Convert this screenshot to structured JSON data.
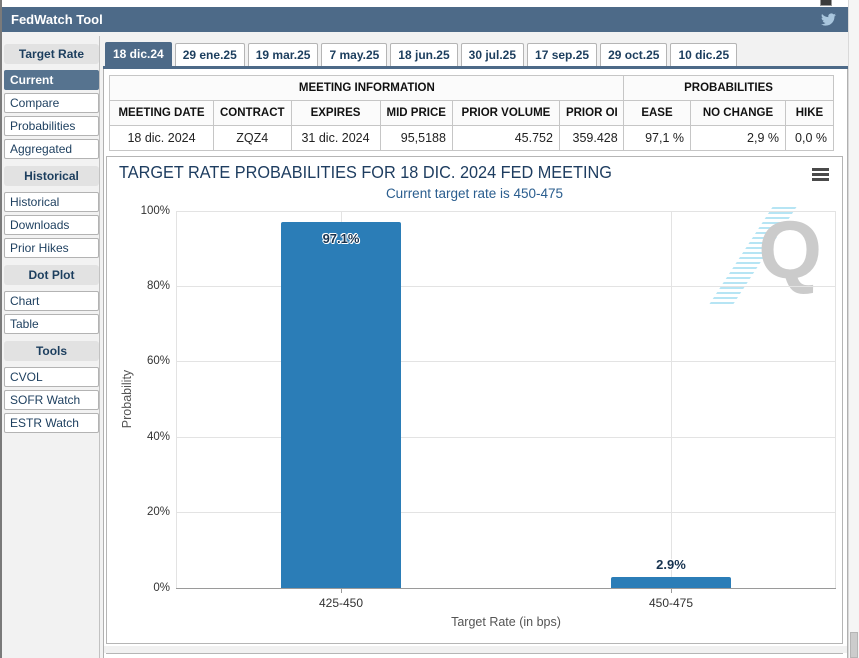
{
  "header": {
    "title": "FedWatch Tool"
  },
  "sidebar": {
    "sections": [
      {
        "header": "Target Rate",
        "items": [
          {
            "label": "Current",
            "active": true
          },
          {
            "label": "Compare"
          },
          {
            "label": "Probabilities"
          },
          {
            "label": "Aggregated"
          }
        ]
      },
      {
        "header": "Historical",
        "items": [
          {
            "label": "Historical"
          },
          {
            "label": "Downloads"
          },
          {
            "label": "Prior Hikes"
          }
        ]
      },
      {
        "header": "Dot Plot",
        "items": [
          {
            "label": "Chart"
          },
          {
            "label": "Table"
          }
        ]
      },
      {
        "header": "Tools",
        "items": [
          {
            "label": "CVOL"
          },
          {
            "label": "SOFR Watch"
          },
          {
            "label": "ESTR Watch"
          }
        ]
      }
    ]
  },
  "tabs": [
    {
      "label": "18 dic.24",
      "active": true
    },
    {
      "label": "29 ene.25"
    },
    {
      "label": "19 mar.25"
    },
    {
      "label": "7 may.25"
    },
    {
      "label": "18 jun.25"
    },
    {
      "label": "30 jul.25"
    },
    {
      "label": "17 sep.25"
    },
    {
      "label": "29 oct.25"
    },
    {
      "label": "10 dic.25"
    }
  ],
  "meeting_info": {
    "caption": "MEETING INFORMATION",
    "columns": [
      "MEETING DATE",
      "CONTRACT",
      "EXPIRES",
      "MID PRICE",
      "PRIOR VOLUME",
      "PRIOR OI"
    ],
    "values": [
      "18 dic. 2024",
      "ZQZ4",
      "31 dic. 2024",
      "95,5188",
      "45.752",
      "359.428"
    ],
    "align": [
      "center",
      "center",
      "center",
      "right",
      "right",
      "right"
    ]
  },
  "probabilities": {
    "caption": "PROBABILITIES",
    "columns": [
      "EASE",
      "NO CHANGE",
      "HIKE"
    ],
    "values": [
      "97,1 %",
      "2,9 %",
      "0,0 %"
    ],
    "align": [
      "right",
      "right",
      "right"
    ]
  },
  "chart_data": {
    "type": "bar",
    "title": "TARGET RATE PROBABILITIES FOR 18 DIC. 2024 FED MEETING",
    "subtitle": "Current target rate is 450-475",
    "categories": [
      "425-450",
      "450-475"
    ],
    "values": [
      97.1,
      2.9
    ],
    "bar_labels": [
      "97.1%",
      "2.9%"
    ],
    "xlabel": "Target Rate (in bps)",
    "ylabel": "Probability",
    "ylim": [
      0,
      100
    ],
    "yticks": [
      0,
      20,
      40,
      60,
      80,
      100
    ],
    "ytick_labels": [
      "0%",
      "20%",
      "40%",
      "60%",
      "80%",
      "100%"
    ],
    "grid": true,
    "legend": "none",
    "bar_color": "#2b7db7",
    "watermark_letter": "Q"
  },
  "colors": {
    "accent_slate": "#4d6a88",
    "sidebar_active": "#56738f",
    "bar_blue": "#2b7db7",
    "title_navy": "#1e3d60",
    "subtitle_blue": "#2a5d8e"
  }
}
